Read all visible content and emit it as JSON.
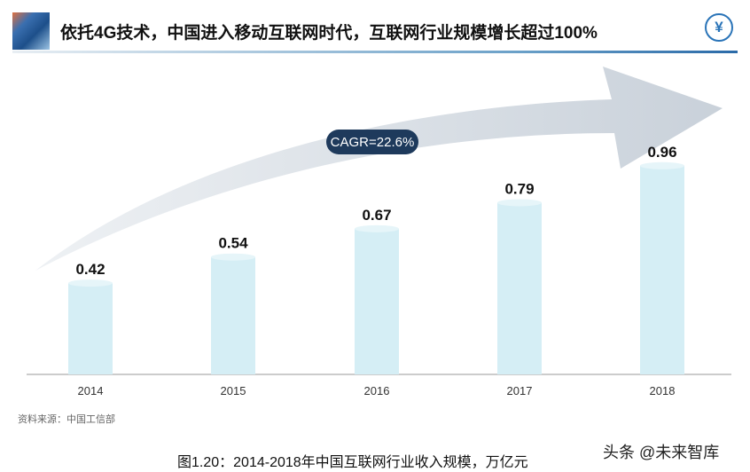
{
  "header": {
    "title": "依托4G技术，中国进入移动互联网时代，互联网行业规模增长超过100%",
    "icon": "yen-icon"
  },
  "chart_data": {
    "type": "bar",
    "categories": [
      "2014",
      "2015",
      "2016",
      "2017",
      "2018"
    ],
    "values": [
      0.42,
      0.54,
      0.67,
      0.79,
      0.96
    ],
    "value_labels": [
      "0.42",
      "0.54",
      "0.67",
      "0.79",
      "0.96"
    ],
    "annotation": "CAGR=22.6%",
    "ylim": [
      0,
      1.0
    ],
    "bar_color": "#d5eef5",
    "pill_color": "#1e3a5c"
  },
  "source": "资料来源：中国工信部",
  "caption": "图1.20：2014-2018年中国互联网行业收入规模，万亿元",
  "watermark": "头条 @未来智库"
}
